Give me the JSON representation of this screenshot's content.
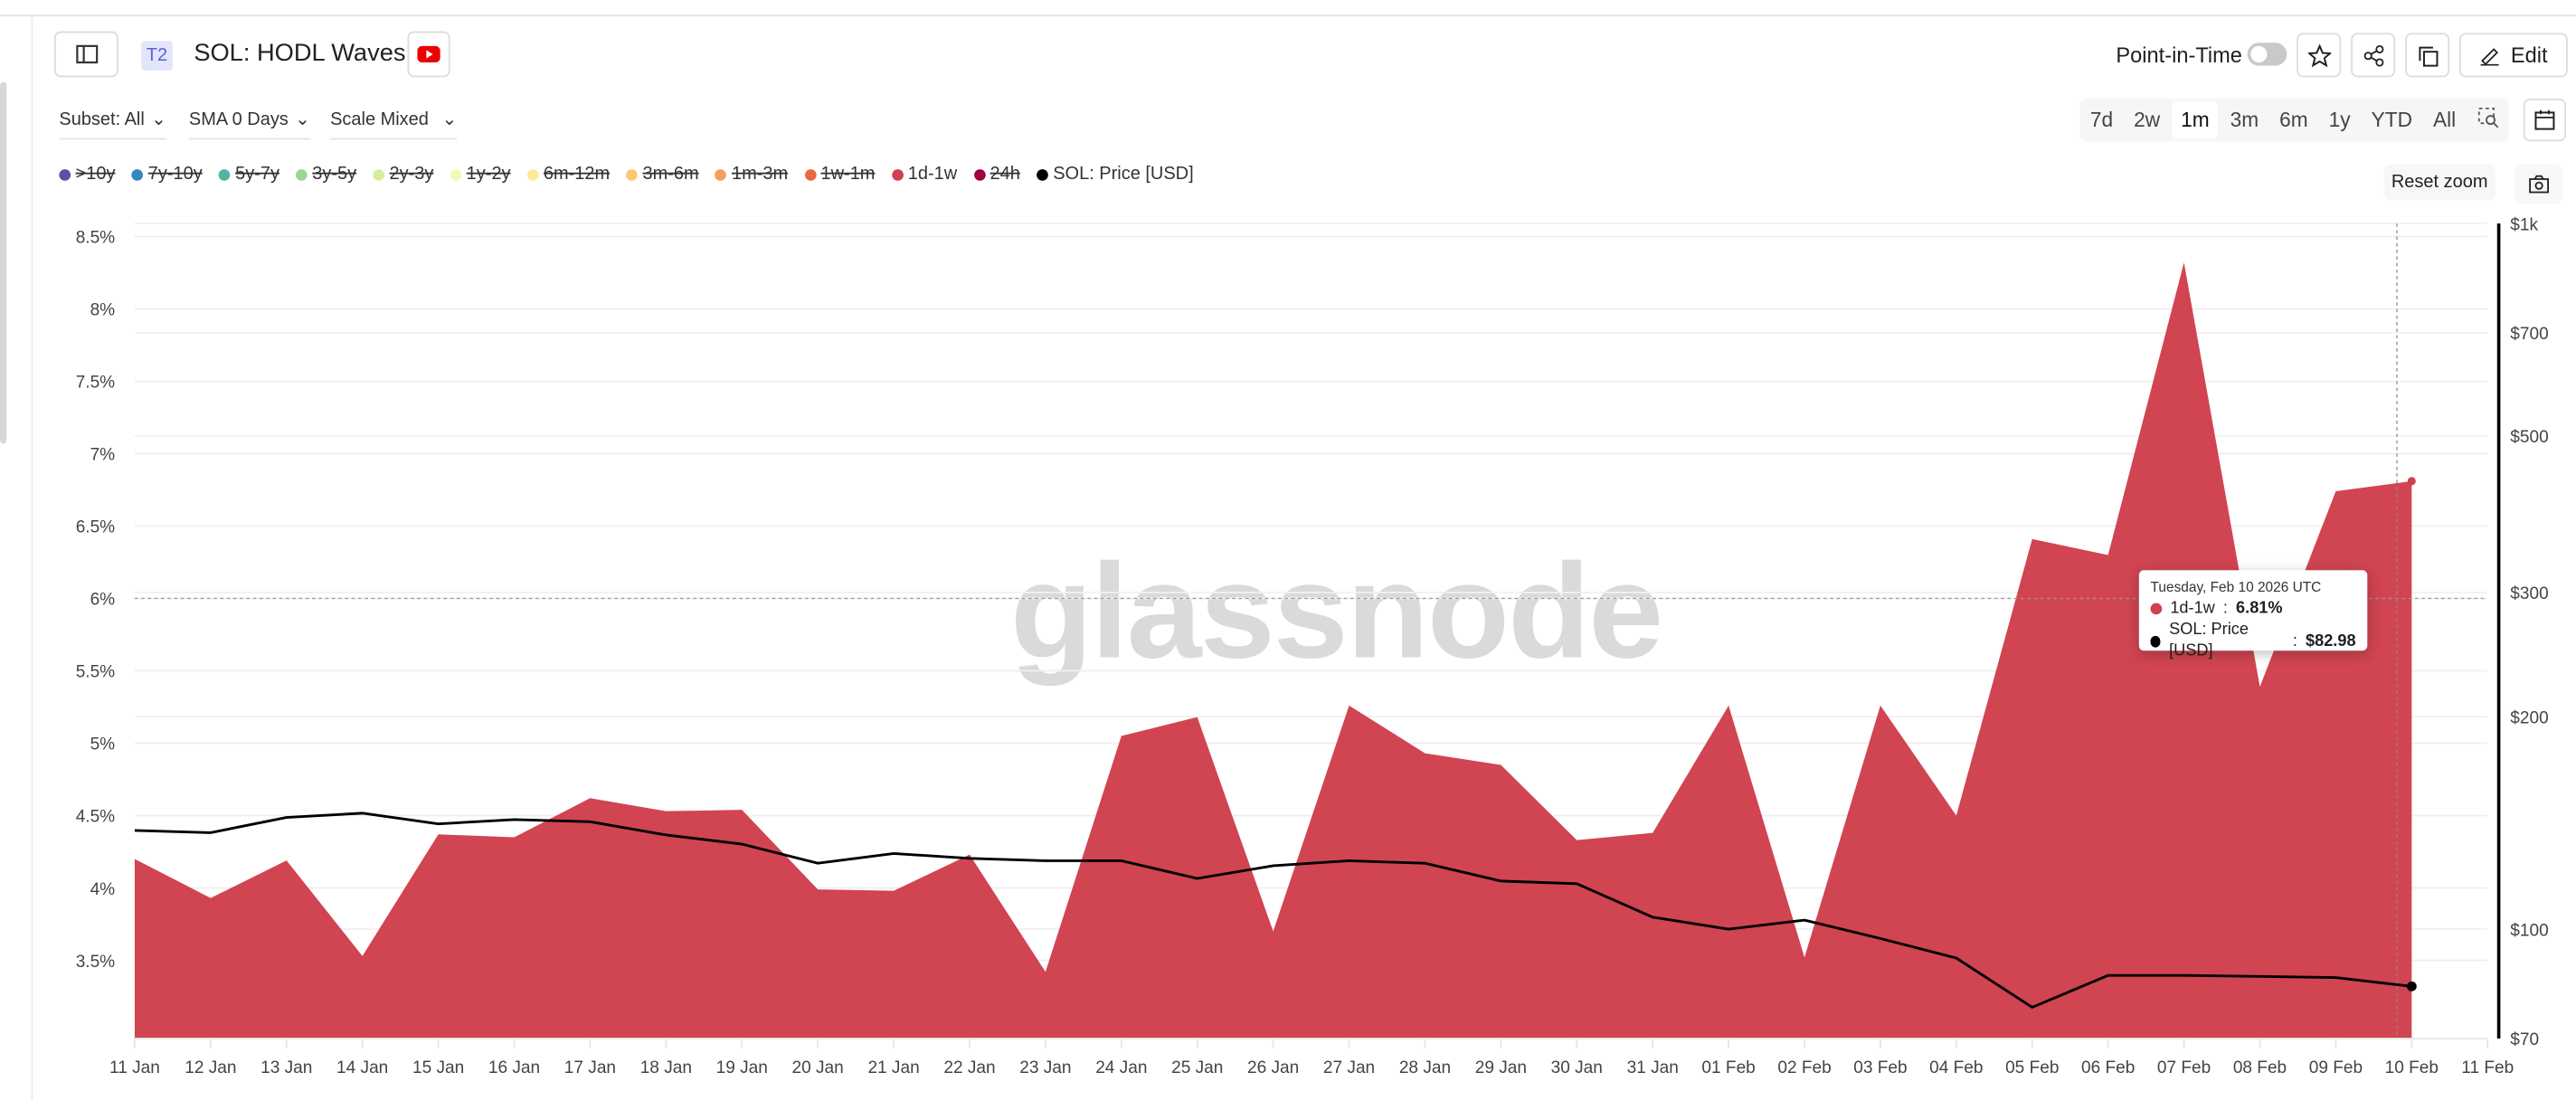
{
  "header": {
    "badge": "T2",
    "title": "SOL: HODL Waves",
    "point_in_time_label": "Point-in-Time",
    "point_in_time_on": false,
    "edit_label": "Edit"
  },
  "filters": {
    "subset": "Subset: All",
    "sma": "SMA 0 Days",
    "scale": "Scale Mixed"
  },
  "ranges": [
    {
      "label": "7d"
    },
    {
      "label": "2w"
    },
    {
      "label": "1m",
      "active": true
    },
    {
      "label": "3m"
    },
    {
      "label": "6m"
    },
    {
      "label": "1y"
    },
    {
      "label": "YTD"
    },
    {
      "label": "All"
    }
  ],
  "reset_zoom": "Reset zoom",
  "legend": [
    {
      "label": ">10y",
      "color": "#5e4fa2",
      "hidden": true
    },
    {
      "label": "7y-10y",
      "color": "#3288bd",
      "hidden": true
    },
    {
      "label": "5y-7y",
      "color": "#4fb5a3",
      "hidden": true
    },
    {
      "label": "3y-5y",
      "color": "#99d594",
      "hidden": true
    },
    {
      "label": "2y-3y",
      "color": "#d6ee9b",
      "hidden": true
    },
    {
      "label": "1y-2y",
      "color": "#f6f8b9",
      "hidden": true
    },
    {
      "label": "6m-12m",
      "color": "#fee89a",
      "hidden": true
    },
    {
      "label": "3m-6m",
      "color": "#fdc86f",
      "hidden": true
    },
    {
      "label": "1m-3m",
      "color": "#f99d59",
      "hidden": true
    },
    {
      "label": "1w-1m",
      "color": "#ea6744",
      "hidden": true
    },
    {
      "label": "1d-1w",
      "color": "#d0404f",
      "hidden": false
    },
    {
      "label": "24h",
      "color": "#9e0142",
      "hidden": true
    },
    {
      "label": "SOL: Price [USD]",
      "color": "#000000",
      "hidden": false
    }
  ],
  "watermark": "glassnode",
  "tooltip": {
    "date": "Tuesday, Feb 10 2026 UTC",
    "rows": [
      {
        "label": "1d-1w",
        "value": "6.81%",
        "color": "#d0404f"
      },
      {
        "label": "SOL: Price [USD]",
        "value": "$82.98",
        "color": "#000000"
      }
    ]
  },
  "chart_data": {
    "type": "area",
    "x": [
      "11 Jan",
      "12 Jan",
      "13 Jan",
      "14 Jan",
      "15 Jan",
      "16 Jan",
      "17 Jan",
      "18 Jan",
      "19 Jan",
      "20 Jan",
      "21 Jan",
      "22 Jan",
      "23 Jan",
      "24 Jan",
      "25 Jan",
      "26 Jan",
      "27 Jan",
      "28 Jan",
      "29 Jan",
      "30 Jan",
      "31 Jan",
      "01 Feb",
      "02 Feb",
      "03 Feb",
      "04 Feb",
      "05 Feb",
      "06 Feb",
      "07 Feb",
      "08 Feb",
      "09 Feb",
      "10 Feb"
    ],
    "x_tick_labels": [
      "11 Jan",
      "12 Jan",
      "13 Jan",
      "14 Jan",
      "15 Jan",
      "16 Jan",
      "17 Jan",
      "18 Jan",
      "19 Jan",
      "20 Jan",
      "21 Jan",
      "22 Jan",
      "23 Jan",
      "24 Jan",
      "25 Jan",
      "26 Jan",
      "27 Jan",
      "28 Jan",
      "29 Jan",
      "30 Jan",
      "31 Jan",
      "01 Feb",
      "02 Feb",
      "03 Feb",
      "04 Feb",
      "05 Feb",
      "06 Feb",
      "07 Feb",
      "08 Feb",
      "09 Feb",
      "10 Feb",
      "11 Feb"
    ],
    "series": [
      {
        "name": "1d-1w",
        "type": "area",
        "axis": "left",
        "color": "#d0404f",
        "values": [
          4.2,
          3.93,
          4.19,
          3.53,
          4.37,
          4.35,
          4.62,
          4.53,
          4.54,
          3.99,
          3.98,
          4.23,
          3.42,
          5.05,
          5.18,
          3.7,
          5.26,
          4.93,
          4.85,
          4.33,
          4.38,
          5.26,
          3.52,
          5.26,
          4.5,
          6.41,
          6.3,
          8.32,
          5.39,
          6.74,
          6.81
        ]
      },
      {
        "name": "SOL: Price [USD]",
        "type": "line",
        "axis": "right",
        "color": "#000000",
        "values": [
          138,
          137,
          144,
          146,
          141,
          143,
          142,
          136,
          132,
          124,
          128,
          126,
          125,
          125,
          118,
          123,
          125,
          124,
          117,
          116,
          104,
          100,
          103,
          97,
          91,
          77.5,
          86,
          86,
          85.7,
          85.4,
          82.98
        ]
      }
    ],
    "y_left": {
      "ticks": [
        3.5,
        4,
        4.5,
        5,
        5.5,
        6,
        6.5,
        7,
        7.5,
        8,
        8.5
      ],
      "tick_labels": [
        "3.5%",
        "4%",
        "4.5%",
        "5%",
        "5.5%",
        "6%",
        "6.5%",
        "7%",
        "7.5%",
        "8%",
        "8.5%"
      ],
      "range": [
        2.96,
        8.59
      ]
    },
    "y_right": {
      "scale": "log",
      "ticks": [
        70,
        100,
        200,
        300,
        500,
        700,
        1000
      ],
      "tick_labels": [
        "$70",
        "$100",
        "$200",
        "$300",
        "$500",
        "$700",
        "$1k"
      ],
      "range": [
        70,
        1000
      ]
    },
    "grid": true,
    "legend_position": "top-left"
  }
}
